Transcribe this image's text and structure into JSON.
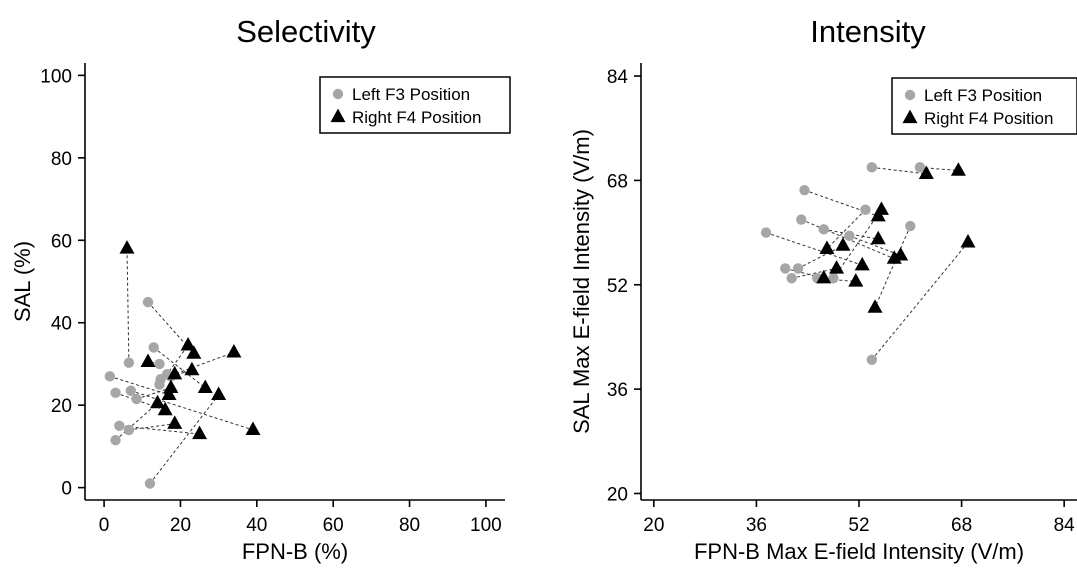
{
  "chart_data": [
    {
      "type": "scatter",
      "title": "Selectivity",
      "xlabel": "FPN-B (%)",
      "ylabel": "SAL (%)",
      "xlim": [
        -5,
        105
      ],
      "ylim": [
        -3,
        103
      ],
      "xticks": [
        0,
        20,
        40,
        60,
        80,
        100
      ],
      "yticks": [
        0,
        20,
        40,
        60,
        80,
        100
      ],
      "legend_position": "top-right",
      "series": [
        {
          "name": "Left F3 Position",
          "marker": "circle",
          "color": "#a6a6a6"
        },
        {
          "name": "Right F4 Position",
          "marker": "triangle",
          "color": "#000000"
        }
      ],
      "pairs": [
        {
          "left": [
            6.5,
            30.3
          ],
          "right": [
            6.0,
            58.0
          ]
        },
        {
          "left": [
            1.5,
            27.0
          ],
          "right": [
            17.0,
            22.5
          ]
        },
        {
          "left": [
            3.0,
            23.0
          ],
          "right": [
            16.0,
            18.8
          ]
        },
        {
          "left": [
            4.0,
            15.0
          ],
          "right": [
            25.0,
            13.0
          ]
        },
        {
          "left": [
            3.0,
            11.5
          ],
          "right": [
            14.0,
            20.5
          ]
        },
        {
          "left": [
            6.5,
            14.0
          ],
          "right": [
            18.5,
            15.5
          ]
        },
        {
          "left": [
            7.0,
            23.5
          ],
          "right": [
            39.0,
            14.0
          ]
        },
        {
          "left": [
            8.5,
            21.5
          ],
          "right": [
            17.5,
            24.2
          ]
        },
        {
          "left": [
            12.0,
            1.0
          ],
          "right": [
            30.0,
            22.5
          ]
        },
        {
          "left": [
            11.5,
            45.0
          ],
          "right": [
            23.5,
            32.5
          ]
        },
        {
          "left": [
            13.0,
            34.0
          ],
          "right": [
            26.5,
            24.2
          ]
        },
        {
          "left": [
            14.5,
            30.0
          ],
          "right": [
            11.5,
            30.5
          ]
        },
        {
          "left": [
            14.8,
            26.3
          ],
          "right": [
            34.0,
            32.8
          ]
        },
        {
          "left": [
            14.5,
            25.0
          ],
          "right": [
            22.0,
            34.5
          ]
        },
        {
          "left": [
            17.5,
            27.0
          ],
          "right": [
            23.0,
            28.5
          ]
        },
        {
          "left": [
            16.5,
            27.5
          ],
          "right": [
            18.5,
            27.5
          ]
        }
      ]
    },
    {
      "type": "scatter",
      "title": "Intensity",
      "xlabel": "FPN-B Max E-field Intensity (V/m)",
      "ylabel": "SAL Max E-field Intensity (V/m)",
      "xlim": [
        18,
        86
      ],
      "ylim": [
        19,
        86
      ],
      "xticks": [
        20,
        36,
        52,
        68,
        84
      ],
      "yticks": [
        20,
        36,
        52,
        68,
        84
      ],
      "legend_position": "top-right",
      "series": [
        {
          "name": "Left F3 Position",
          "marker": "circle",
          "color": "#a6a6a6"
        },
        {
          "name": "Right F4 Position",
          "marker": "triangle",
          "color": "#000000"
        }
      ],
      "pairs": [
        {
          "left": [
            37.5,
            60.0
          ],
          "right": [
            52.5,
            55.0
          ]
        },
        {
          "left": [
            40.5,
            54.5
          ],
          "right": [
            46.5,
            53.0
          ]
        },
        {
          "left": [
            41.5,
            53.0
          ],
          "right": [
            48.5,
            54.5
          ]
        },
        {
          "left": [
            42.5,
            54.5
          ],
          "right": [
            49.5,
            58.0
          ]
        },
        {
          "left": [
            43.0,
            62.0
          ],
          "right": [
            57.5,
            56.0
          ]
        },
        {
          "left": [
            43.5,
            66.5
          ],
          "right": [
            55.0,
            62.5
          ]
        },
        {
          "left": [
            45.5,
            53.0
          ],
          "right": [
            51.5,
            52.5
          ]
        },
        {
          "left": [
            46.5,
            60.5
          ],
          "right": [
            55.0,
            59.0
          ]
        },
        {
          "left": [
            50.5,
            59.5
          ],
          "right": [
            58.5,
            56.5
          ]
        },
        {
          "left": [
            53.0,
            63.5
          ],
          "right": [
            47.0,
            57.5
          ]
        },
        {
          "left": [
            54.0,
            70.0
          ],
          "right": [
            62.5,
            69.0
          ]
        },
        {
          "left": [
            54.0,
            40.5
          ],
          "right": [
            69.0,
            58.5
          ]
        },
        {
          "left": [
            60.0,
            61.0
          ],
          "right": [
            54.5,
            48.5
          ]
        },
        {
          "left": [
            61.5,
            70.0
          ],
          "right": [
            67.5,
            69.5
          ]
        },
        {
          "left": [
            48.0,
            53.0
          ],
          "right": [
            55.5,
            63.5
          ]
        }
      ]
    }
  ]
}
